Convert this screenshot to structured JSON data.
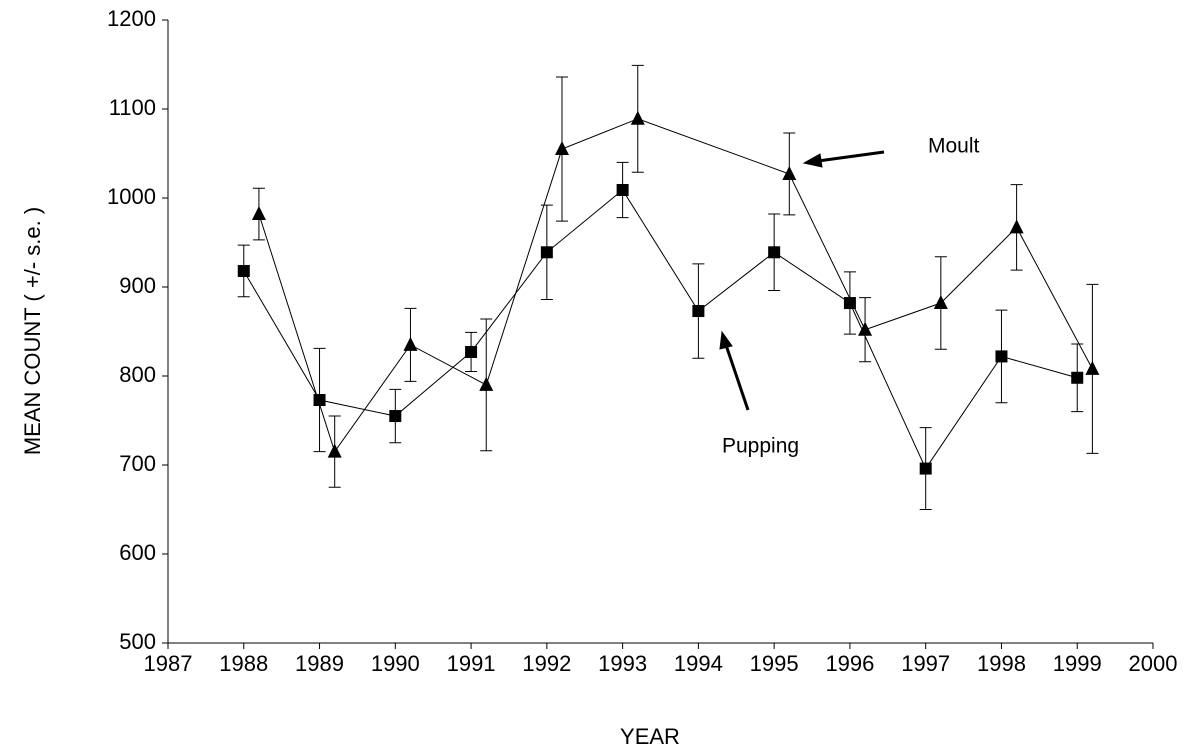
{
  "chart_data": {
    "type": "line",
    "xlabel": "YEAR",
    "ylabel": "MEAN COUNT ( +/- s.e. )",
    "xlim": [
      1987,
      2000
    ],
    "xticks": [
      1987,
      1988,
      1989,
      1990,
      1991,
      1992,
      1993,
      1994,
      1995,
      1996,
      1997,
      1998,
      1999,
      2000
    ],
    "ylim": [
      500,
      1200
    ],
    "yticks": [
      500,
      600,
      700,
      800,
      900,
      1000,
      1100,
      1200
    ],
    "grid": false,
    "series": [
      {
        "name": "Pupping",
        "color": "#000000",
        "marker": "square",
        "x": [
          1988,
          1989,
          1990,
          1991,
          1992,
          1993,
          1994,
          1995,
          1996,
          1997,
          1998,
          1999
        ],
        "values": [
          918,
          773,
          755,
          827,
          939,
          1009,
          873,
          939,
          882,
          696,
          822,
          798
        ],
        "errors": [
          29,
          58,
          30,
          22,
          53,
          31,
          53,
          43,
          35,
          46,
          52,
          38
        ]
      },
      {
        "name": "Moult",
        "color": "#000000",
        "marker": "triangle",
        "x": [
          1988.2,
          1989.2,
          1990.2,
          1991.2,
          1992.2,
          1993.2,
          1995.2,
          1996.2,
          1997.2,
          1998.2,
          1999.2
        ],
        "values": [
          982,
          715,
          835,
          790,
          1055,
          1089,
          1027,
          852,
          882,
          967,
          808
        ],
        "errors": [
          29,
          40,
          41,
          74,
          81,
          60,
          46,
          36,
          52,
          48,
          95
        ]
      }
    ]
  }
}
